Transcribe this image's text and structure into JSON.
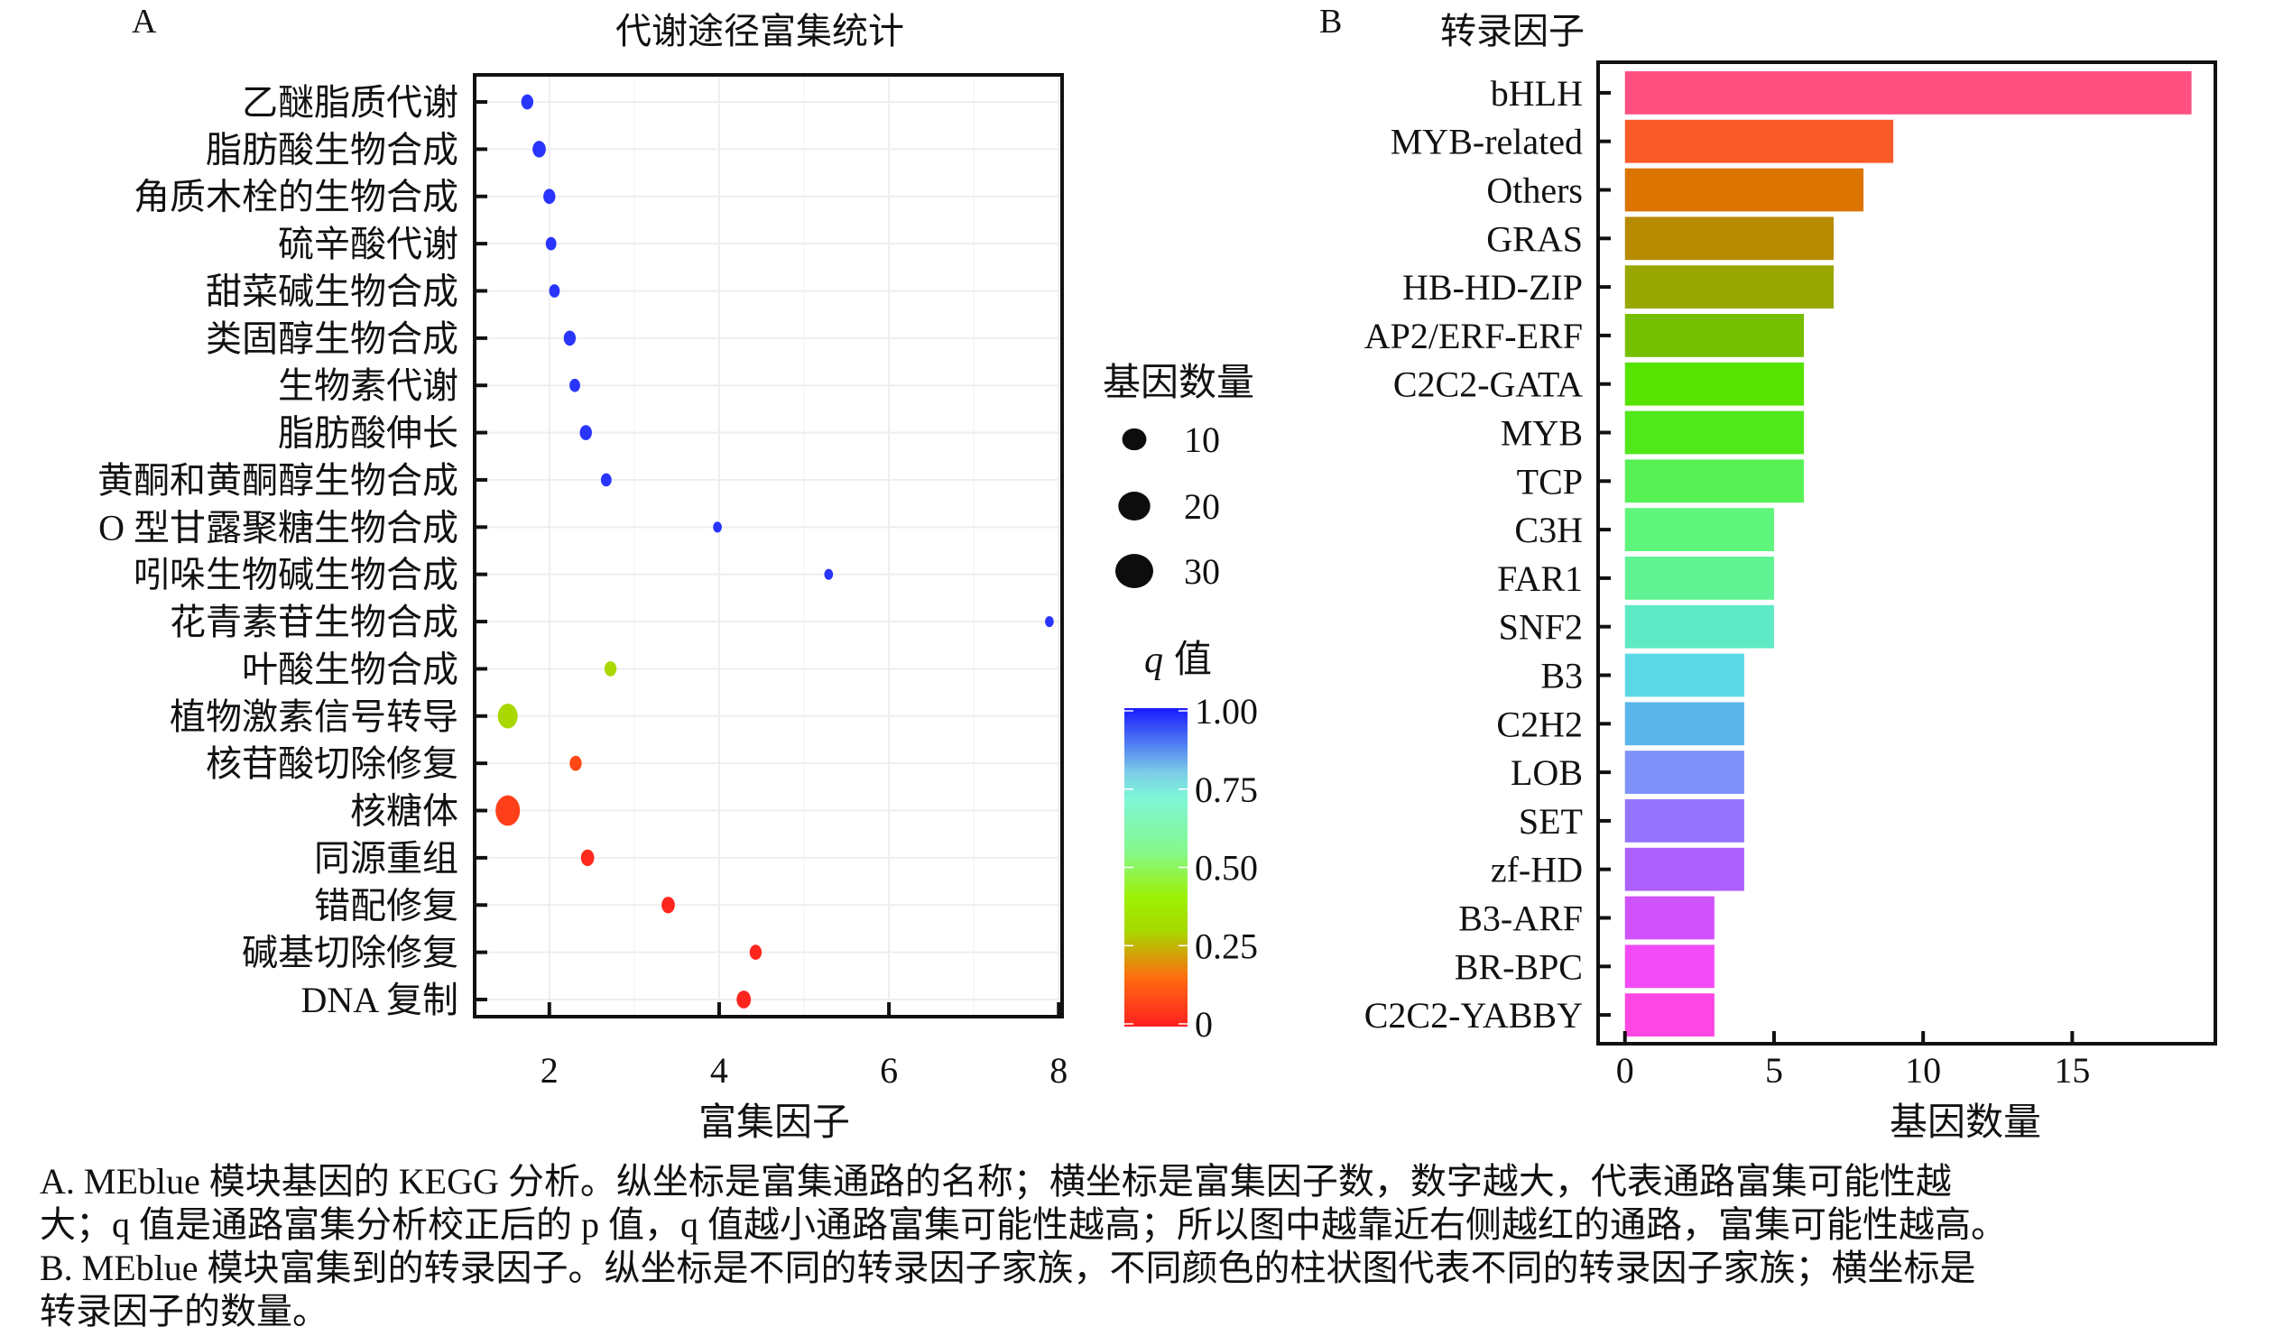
{
  "panel_a": {
    "letter": "A",
    "title": "代谢途径富集统计"
  },
  "panel_b": {
    "letter": "B",
    "title": "转录因子"
  },
  "legend": {
    "size_title": "基因数量",
    "size_entries": [
      {
        "label": "10",
        "value": 10
      },
      {
        "label": "20",
        "value": 20
      },
      {
        "label": "30",
        "value": 30
      }
    ],
    "color_title_italic": "q",
    "color_title": "值",
    "color_ticks": [
      {
        "label": "1.00",
        "value": 1.0
      },
      {
        "label": "0.75",
        "value": 0.75
      },
      {
        "label": "0.50",
        "value": 0.5
      },
      {
        "label": "0.25",
        "value": 0.25
      },
      {
        "label": "0",
        "value": 0
      }
    ],
    "color_stops": [
      "#ff2020",
      "#ff6a10",
      "#9ef000",
      "#7fffb0",
      "#6ff0e0",
      "#2020ff"
    ]
  },
  "caption": {
    "lines": [
      "A. MEblue 模块基因的 KEGG 分析。纵坐标是富集通路的名称；横坐标是富集因子数，数字越大，代表通路富集可能性越",
      "大；q 值是通路富集分析校正后的 p 值，q 值越小通路富集可能性越高；所以图中越靠近右侧越红的通路，富集可能性越高。",
      "B. MEblue 模块富集到的转录因子。纵坐标是不同的转录因子家族，不同颜色的柱状图代表不同的转录因子家族；横坐标是",
      "转录因子的数量。"
    ]
  },
  "chart_data": [
    {
      "type": "scatter",
      "title": "代谢途径富集统计",
      "xlabel": "富集因子",
      "ylabel": "",
      "xlim": [
        1.12,
        8.04
      ],
      "xticks": [
        2,
        4,
        6,
        8
      ],
      "xtick_labels": [
        "2",
        "4",
        "6",
        "8"
      ],
      "grid": true,
      "legend_position": "right",
      "categories": [
        "乙醚脂质代谢",
        "脂肪酸生物合成",
        "角质木栓的生物合成",
        "硫辛酸代谢",
        "甜菜碱生物合成",
        "类固醇生物合成",
        "生物素代谢",
        "脂肪酸伸长",
        "黄酮和黄酮醇生物合成",
        "O 型甘露聚糖生物合成",
        "吲哚生物碱生物合成",
        "花青素苷生物合成",
        "叶酸生物合成",
        "植物激素信号转导",
        "核苷酸切除修复",
        "核糖体",
        "同源重组",
        "错配修复",
        "碱基切除修复",
        "DNA 复制"
      ],
      "rich_factor": [
        1.74,
        1.88,
        2.0,
        2.02,
        2.06,
        2.24,
        2.3,
        2.43,
        2.67,
        3.98,
        5.29,
        7.89,
        2.72,
        1.51,
        2.31,
        1.51,
        2.45,
        3.4,
        4.43,
        4.29
      ],
      "gene_count": [
        3,
        4,
        3,
        2,
        2,
        3,
        2,
        3,
        2,
        1,
        1,
        1,
        3,
        12,
        3,
        20,
        4,
        4,
        3,
        5
      ],
      "q_value": [
        0.97,
        0.97,
        0.97,
        0.97,
        0.97,
        0.97,
        0.97,
        0.97,
        0.97,
        0.97,
        0.97,
        0.97,
        0.3,
        0.3,
        0.08,
        0.06,
        0.02,
        0.01,
        0.01,
        0.01
      ]
    },
    {
      "type": "bar",
      "orientation": "horizontal",
      "title": "转录因子",
      "xlabel": "基因数量",
      "ylabel": "",
      "xlim": [
        -0.9,
        19.8
      ],
      "xticks": [
        0,
        5,
        10,
        15
      ],
      "xtick_labels": [
        "0",
        "5",
        "10",
        "15"
      ],
      "categories": [
        "bHLH",
        "MYB-related",
        "Others",
        "GRAS",
        "HB-HD-ZIP",
        "AP2/ERF-ERF",
        "C2C2-GATA",
        "MYB",
        "TCP",
        "C3H",
        "FAR1",
        "SNF2",
        "B3",
        "C2H2",
        "LOB",
        "SET",
        "zf-HD",
        "B3-ARF",
        "BR-BPC",
        "C2C2-YABBY"
      ],
      "values": [
        19,
        9,
        8,
        7,
        7,
        6,
        6,
        6,
        6,
        5,
        5,
        5,
        4,
        4,
        4,
        4,
        4,
        3,
        3,
        3
      ],
      "colors": [
        "#ff4f81",
        "#f95a28",
        "#dc7400",
        "#b78a00",
        "#98a700",
        "#76bf00",
        "#56e300",
        "#50e81b",
        "#58f155",
        "#5df57b",
        "#60f394",
        "#5eeac4",
        "#5bd8e6",
        "#5ab6ea",
        "#7f91f8",
        "#9474fd",
        "#ae60ff",
        "#d052fb",
        "#f24bf5",
        "#ff47e4"
      ]
    }
  ]
}
